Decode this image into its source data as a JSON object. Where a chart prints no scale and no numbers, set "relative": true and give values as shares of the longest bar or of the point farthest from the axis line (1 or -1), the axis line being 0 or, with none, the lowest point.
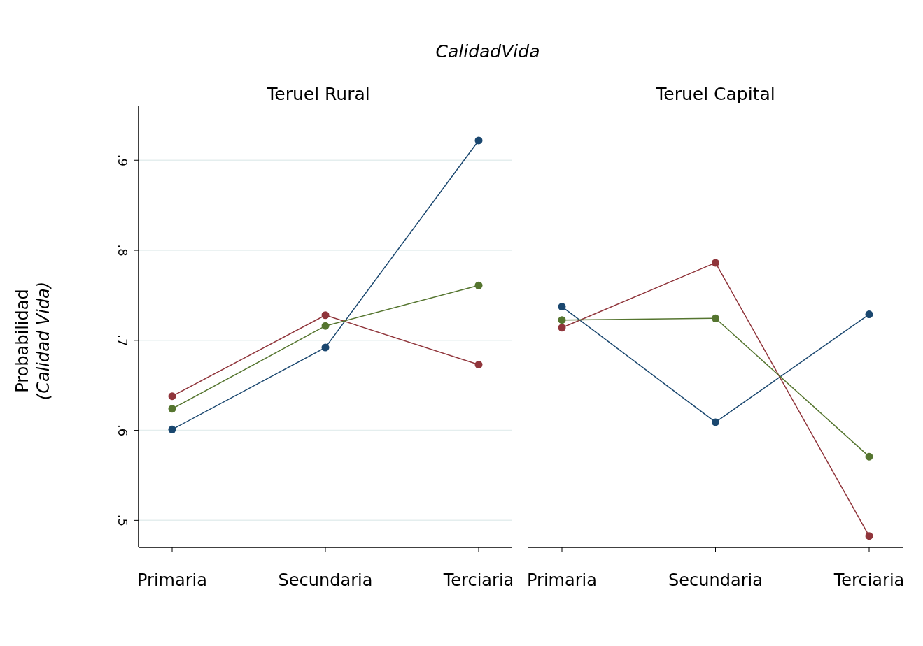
{
  "chart_data": [
    {
      "type": "line",
      "title": "Teruel Rural",
      "ylabel": "Probabilidad (Calidad Vida)",
      "annotations": [
        "CalidadVida"
      ],
      "categories": [
        "Primaria",
        "Secundaria",
        "Terciaria"
      ],
      "series": [
        {
          "color": "#1a476f",
          "values": [
            0.601,
            0.692,
            0.922
          ]
        },
        {
          "color": "#90353b",
          "values": [
            0.638,
            0.728,
            0.673
          ]
        },
        {
          "color": "#55752f",
          "values": [
            0.624,
            0.716,
            0.761
          ]
        }
      ],
      "ylim": [
        0.47,
        0.96
      ],
      "yticks": [
        {
          "value": 0.5,
          "label": ".5"
        },
        {
          "value": 0.6,
          "label": ".6"
        },
        {
          "value": 0.7,
          "label": ".7"
        },
        {
          "value": 0.8,
          "label": ".8"
        },
        {
          "value": 0.9,
          "label": ".9"
        }
      ],
      "grid": "y",
      "marker": "circle",
      "line_style": "solid"
    },
    {
      "type": "line",
      "title": "Teruel Capital",
      "categories": [
        "Primaria",
        "Secundaria",
        "Terciaria"
      ],
      "relative": true,
      "series": [
        {
          "color": "#1a476f",
          "values": [
            0.846,
            0.44,
            0.819
          ]
        },
        {
          "color": "#90353b",
          "values": [
            0.772,
            1,
            0.04
          ]
        },
        {
          "color": "#55752f",
          "values": [
            0.799,
            0.805,
            0.319
          ]
        }
      ],
      "marker": "circle",
      "line_style": "solid"
    }
  ]
}
